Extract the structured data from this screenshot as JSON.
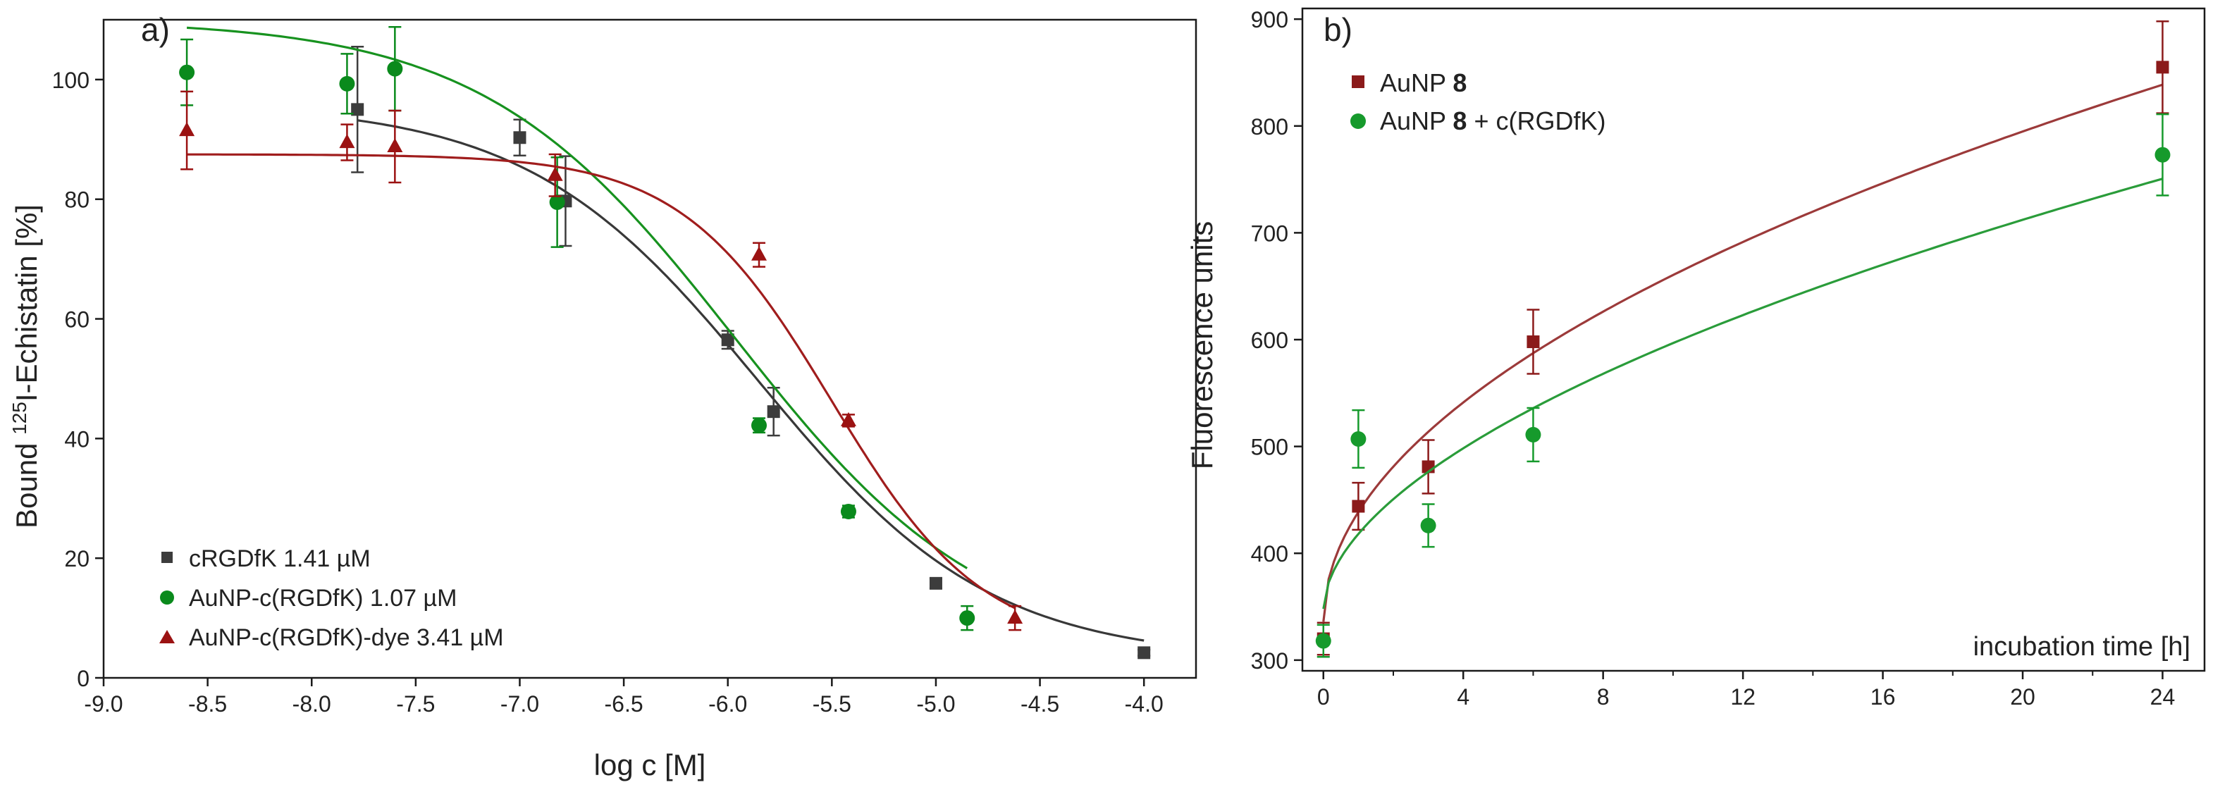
{
  "colors": {
    "gray": "#3c3c3c",
    "green": "#0a8a1c",
    "red": "#9b1212",
    "curve_gray": "#383838",
    "curve_green": "#17921f",
    "curve_red": "#a01d1d",
    "b_red": "#8b1a1a",
    "b_green": "#169a2c",
    "b_red_curve": "#9c3a3a",
    "b_green_curve": "#2a9c3a"
  },
  "chart_data": [
    {
      "type": "scatter",
      "panel_label": "a)",
      "xlabel": "log c [M]",
      "ylabel_prefix": "Bound ",
      "ylabel_sup": "125",
      "ylabel_suffix": "I-Echistatin [%]",
      "xlim": [
        -9.0,
        -3.75
      ],
      "ylim": [
        0,
        110
      ],
      "xticks": [
        -9.0,
        -8.5,
        -8.0,
        -7.5,
        -7.0,
        -6.5,
        -6.0,
        -5.5,
        -5.0,
        -4.5,
        -4.0
      ],
      "xtick_labels": [
        "-9.0",
        "-8.5",
        "-8.0",
        "-7.5",
        "-7.0",
        "-6.5",
        "-6.0",
        "-5.5",
        "-5.0",
        "-4.5",
        "-4.0"
      ],
      "yticks": [
        0,
        20,
        40,
        60,
        80,
        100
      ],
      "ytick_labels": [
        "0",
        "20",
        "40",
        "60",
        "80",
        "100"
      ],
      "legend_position": "bottom-left",
      "series": [
        {
          "name": "cRGDfK 1.41 µM",
          "marker": "square",
          "color_key": "gray",
          "curve_color_key": "curve_gray",
          "points": [
            {
              "x": -7.78,
              "y": 95,
              "err": 10.5
            },
            {
              "x": -7.0,
              "y": 90.3,
              "err": 3
            },
            {
              "x": -6.78,
              "y": 79.7,
              "err": 7.5
            },
            {
              "x": -6.0,
              "y": 56.5,
              "err": 1.5
            },
            {
              "x": -5.78,
              "y": 44.5,
              "err": 4
            },
            {
              "x": -5.0,
              "y": 15.8,
              "err": 0.8
            },
            {
              "x": -4.0,
              "y": 4.2,
              "err": 0.5
            }
          ],
          "fit": {
            "top": 96,
            "bottom": 3,
            "logEC50": -5.85,
            "hill": 0.78,
            "x_from": -7.78,
            "x_to": -4.0
          }
        },
        {
          "name": "AuNP-c(RGDfK) 1.07 µM",
          "marker": "circle",
          "color_key": "green",
          "curve_color_key": "curve_green",
          "points": [
            {
              "x": -8.6,
              "y": 101.2,
              "err": 5.5
            },
            {
              "x": -7.83,
              "y": 99.3,
              "err": 5
            },
            {
              "x": -7.6,
              "y": 101.8,
              "err": 7
            },
            {
              "x": -6.82,
              "y": 79.5,
              "err": 7.5
            },
            {
              "x": -5.85,
              "y": 42.2,
              "err": 1.2
            },
            {
              "x": -5.42,
              "y": 27.8,
              "err": 1
            },
            {
              "x": -4.85,
              "y": 10.0,
              "err": 2
            }
          ],
          "fit": {
            "top": 110,
            "bottom": 4,
            "logEC50": -5.97,
            "hill": 0.72,
            "x_from": -8.6,
            "x_to": -4.85
          }
        },
        {
          "name": "AuNP-c(RGDfK)-dye 3.41 µM",
          "marker": "triangle",
          "color_key": "red",
          "curve_color_key": "curve_red",
          "points": [
            {
              "x": -8.6,
              "y": 91.5,
              "err": 6.5
            },
            {
              "x": -7.83,
              "y": 89.5,
              "err": 3
            },
            {
              "x": -7.6,
              "y": 88.8,
              "err": 6
            },
            {
              "x": -6.83,
              "y": 84.0,
              "err": 3.5
            },
            {
              "x": -5.85,
              "y": 70.7,
              "err": 2
            },
            {
              "x": -5.42,
              "y": 43.0,
              "err": 1
            },
            {
              "x": -4.62,
              "y": 10.0,
              "err": 2
            }
          ],
          "fit": {
            "top": 87.5,
            "bottom": 5,
            "logEC50": -5.5,
            "hill": 1.2,
            "x_from": -8.6,
            "x_to": -4.62
          }
        }
      ]
    },
    {
      "type": "scatter",
      "panel_label": "b)",
      "xlabel": "incubation time [h]",
      "ylabel": "Fluorescence units",
      "xlim": [
        -0.6,
        25.2
      ],
      "ylim": [
        290,
        910
      ],
      "xticks": [
        0,
        4,
        8,
        12,
        16,
        20,
        24
      ],
      "xtick_labels": [
        "0",
        "4",
        "8",
        "12",
        "16",
        "20",
        "24"
      ],
      "xminor_ticks": [
        2,
        6,
        10,
        14,
        18,
        22
      ],
      "yticks": [
        300,
        400,
        500,
        600,
        700,
        800,
        900
      ],
      "ytick_labels": [
        "300",
        "400",
        "500",
        "600",
        "700",
        "800",
        "900"
      ],
      "legend_position": "top-left",
      "series": [
        {
          "name_prefix": "AuNP ",
          "name_bold": "8",
          "name_suffix": "",
          "marker": "square",
          "color_key": "b_red",
          "curve_color_key": "b_red_curve",
          "points": [
            {
              "x": 0,
              "y": 320,
              "err": 15
            },
            {
              "x": 1,
              "y": 444,
              "err": 22
            },
            {
              "x": 3,
              "y": 481,
              "err": 25
            },
            {
              "x": 6,
              "y": 598,
              "err": 30
            },
            {
              "x": 24,
              "y": 855,
              "err": 43
            }
          ],
          "fit": {
            "a": 336,
            "b": 102.6,
            "p": 0.5,
            "x_from": 0,
            "x_to": 24
          }
        },
        {
          "name_prefix": "AuNP ",
          "name_bold": "8",
          "name_suffix": " + c(RGDfK)",
          "marker": "circle",
          "color_key": "b_green",
          "curve_color_key": "b_green_curve",
          "points": [
            {
              "x": 0,
              "y": 318,
              "err": 15
            },
            {
              "x": 1,
              "y": 507,
              "err": 27
            },
            {
              "x": 3,
              "y": 426,
              "err": 20
            },
            {
              "x": 6,
              "y": 511,
              "err": 25
            },
            {
              "x": 24,
              "y": 773,
              "err": 38
            }
          ],
          "fit": {
            "a": 348,
            "b": 70.1,
            "p": 0.55,
            "x_from": 0,
            "x_to": 24
          }
        }
      ]
    }
  ]
}
